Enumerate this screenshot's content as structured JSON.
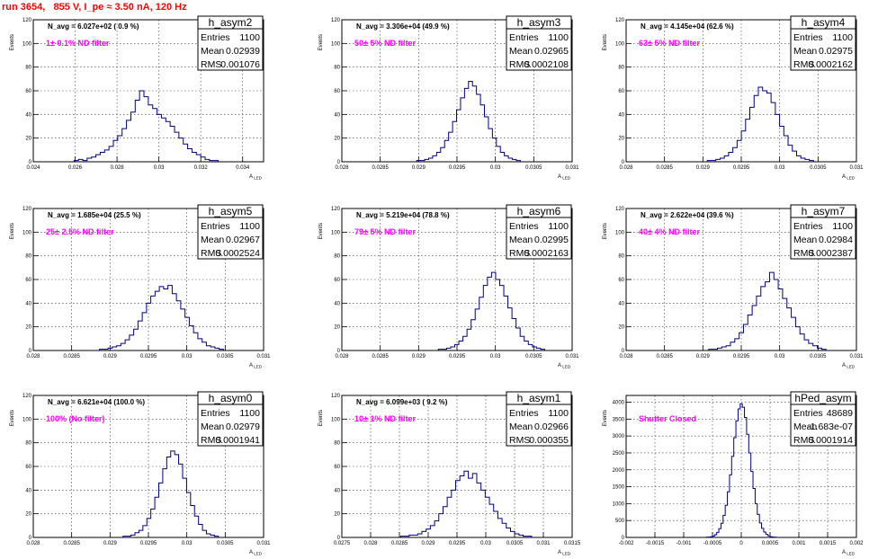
{
  "title": "run 3654,   855 V, I_pe ≈ 3.50 nA, 120 Hz",
  "chart_data": [
    {
      "type": "histogram",
      "name": "h_asym2",
      "n_avg": "N_avg = 6.027e+02 ( 0.9 %)",
      "filter": "1± 0.1% ND filter",
      "ylabel": "Events",
      "xlabel": "A_{LED}",
      "xlim": [
        0.024,
        0.035
      ],
      "ylim": [
        0,
        120
      ],
      "xticks": [
        0.024,
        0.026,
        0.028,
        0.03,
        0.032,
        0.034
      ],
      "xtick_labels": [
        "0.024",
        "0.026",
        "0.028",
        "0.03",
        "0.032",
        "0.034"
      ],
      "yticks": [
        0,
        20,
        40,
        60,
        80,
        100,
        120
      ],
      "stats": {
        "Entries": "1100",
        "Mean": "0.02939",
        "RMS": "0.001076"
      },
      "mean": 0.02939,
      "rms": 0.001076,
      "peak": 60,
      "values": [
        1,
        2,
        1,
        3,
        4,
        6,
        8,
        10,
        13,
        18,
        22,
        28,
        35,
        42,
        52,
        60,
        55,
        48,
        45,
        40,
        37,
        34,
        30,
        25,
        20,
        15,
        11,
        8,
        6,
        4,
        2,
        1,
        1
      ]
    },
    {
      "type": "histogram",
      "name": "h_asym3",
      "n_avg": "N_avg = 3.306e+04 (49.9 %)",
      "filter": "50± 5% ND filter",
      "ylabel": "Events",
      "xlabel": "A_{LED}",
      "xlim": [
        0.028,
        0.031
      ],
      "ylim": [
        0,
        120
      ],
      "xticks": [
        0.028,
        0.0285,
        0.029,
        0.0295,
        0.03,
        0.0305,
        0.031
      ],
      "xtick_labels": [
        "0.028",
        "0.0285",
        "0.029",
        "0.0295",
        "0.03",
        "0.0305",
        "0.031"
      ],
      "yticks": [
        0,
        20,
        40,
        60,
        80,
        100,
        120
      ],
      "stats": {
        "Entries": "1100",
        "Mean": "0.02965",
        "RMS": "0.0002108"
      },
      "mean": 0.02965,
      "rms": 0.0002108,
      "peak": 68,
      "values": [
        1,
        1,
        2,
        3,
        5,
        8,
        12,
        18,
        25,
        34,
        44,
        54,
        62,
        68,
        64,
        57,
        48,
        38,
        28,
        20,
        13,
        8,
        5,
        3,
        2,
        1
      ]
    },
    {
      "type": "histogram",
      "name": "h_asym4",
      "n_avg": "N_avg = 4.145e+04 (62.6 %)",
      "filter": "63± 5% ND filter",
      "ylabel": "Events",
      "xlabel": "A_{LED}",
      "xlim": [
        0.028,
        0.031
      ],
      "ylim": [
        0,
        120
      ],
      "xticks": [
        0.028,
        0.0285,
        0.029,
        0.0295,
        0.03,
        0.0305,
        0.031
      ],
      "xtick_labels": [
        "0.028",
        "0.0285",
        "0.029",
        "0.0295",
        "0.03",
        "0.0305",
        "0.031"
      ],
      "yticks": [
        0,
        20,
        40,
        60,
        80,
        100,
        120
      ],
      "stats": {
        "Entries": "1100",
        "Mean": "0.02975",
        "RMS": "0.0002162"
      },
      "mean": 0.02975,
      "rms": 0.0002162,
      "peak": 63,
      "values": [
        1,
        1,
        2,
        3,
        5,
        8,
        12,
        18,
        26,
        36,
        46,
        56,
        63,
        60,
        58,
        50,
        40,
        30,
        22,
        14,
        9,
        5,
        3,
        2,
        1
      ]
    },
    {
      "type": "histogram",
      "name": "h_asym5",
      "n_avg": "N_avg = 1.685e+04 (25.5 %)",
      "filter": "25± 2.5% ND filter",
      "ylabel": "Events",
      "xlabel": "A_{LED}",
      "xlim": [
        0.028,
        0.031
      ],
      "ylim": [
        0,
        120
      ],
      "xticks": [
        0.028,
        0.0285,
        0.029,
        0.0295,
        0.03,
        0.0305,
        0.031
      ],
      "xtick_labels": [
        "0.028",
        "0.0285",
        "0.029",
        "0.0295",
        "0.03",
        "0.0305",
        "0.031"
      ],
      "yticks": [
        0,
        20,
        40,
        60,
        80,
        100,
        120
      ],
      "stats": {
        "Entries": "1100",
        "Mean": "0.02967",
        "RMS": "0.0002524"
      },
      "mean": 0.02967,
      "rms": 0.0002524,
      "peak": 55,
      "values": [
        1,
        1,
        2,
        3,
        4,
        6,
        9,
        13,
        18,
        25,
        32,
        40,
        46,
        50,
        54,
        52,
        55,
        48,
        42,
        35,
        28,
        21,
        15,
        10,
        7,
        4,
        3,
        2,
        1
      ]
    },
    {
      "type": "histogram",
      "name": "h_asym6",
      "n_avg": "N_avg = 5.219e+04 (78.8 %)",
      "filter": "79± 5% ND filter",
      "ylabel": "Events",
      "xlabel": "A_{LED}",
      "xlim": [
        0.028,
        0.031
      ],
      "ylim": [
        0,
        120
      ],
      "xticks": [
        0.028,
        0.0285,
        0.029,
        0.0295,
        0.03,
        0.0305,
        0.031
      ],
      "xtick_labels": [
        "0.028",
        "0.0285",
        "0.029",
        "0.0295",
        "0.03",
        "0.0305",
        "0.031"
      ],
      "yticks": [
        0,
        20,
        40,
        60,
        80,
        100,
        120
      ],
      "stats": {
        "Entries": "1100",
        "Mean": "0.02995",
        "RMS": "0.0002163"
      },
      "mean": 0.02995,
      "rms": 0.0002163,
      "peak": 66,
      "values": [
        1,
        1,
        2,
        3,
        5,
        8,
        12,
        18,
        26,
        35,
        45,
        55,
        62,
        66,
        60,
        55,
        46,
        36,
        27,
        19,
        12,
        8,
        5,
        3,
        2,
        1
      ]
    },
    {
      "type": "histogram",
      "name": "h_asym7",
      "n_avg": "N_avg = 2.622e+04 (39.6 %)",
      "filter": "40± 4% ND filter",
      "ylabel": "Events",
      "xlabel": "A_{LED}",
      "xlim": [
        0.028,
        0.031
      ],
      "ylim": [
        0,
        120
      ],
      "xticks": [
        0.028,
        0.0285,
        0.029,
        0.0295,
        0.03,
        0.0305,
        0.031
      ],
      "xtick_labels": [
        "0.028",
        "0.0285",
        "0.029",
        "0.0295",
        "0.03",
        "0.0305",
        "0.031"
      ],
      "yticks": [
        0,
        20,
        40,
        60,
        80,
        100,
        120
      ],
      "stats": {
        "Entries": "1100",
        "Mean": "0.02984",
        "RMS": "0.0002387"
      },
      "mean": 0.02984,
      "rms": 0.0002387,
      "peak": 66,
      "values": [
        1,
        1,
        2,
        3,
        4,
        7,
        10,
        15,
        22,
        30,
        38,
        46,
        54,
        58,
        66,
        60,
        52,
        44,
        36,
        28,
        20,
        14,
        9,
        6,
        4,
        2,
        1
      ]
    },
    {
      "type": "histogram",
      "name": "h_asym0",
      "n_avg": "N_avg = 6.621e+04 (100.0 %)",
      "filter": "100% (No filter)",
      "ylabel": "Events",
      "xlabel": "A_{LED}",
      "xlim": [
        0.028,
        0.031
      ],
      "ylim": [
        0,
        120
      ],
      "xticks": [
        0.028,
        0.0285,
        0.029,
        0.0295,
        0.03,
        0.0305,
        0.031
      ],
      "xtick_labels": [
        "0.028",
        "0.0285",
        "0.029",
        "0.0295",
        "0.03",
        "0.0305",
        "0.031"
      ],
      "yticks": [
        0,
        20,
        40,
        60,
        80,
        100,
        120
      ],
      "stats": {
        "Entries": "1100",
        "Mean": "0.02979",
        "RMS": "0.0001941"
      },
      "mean": 0.02979,
      "rms": 0.0001941,
      "peak": 73,
      "values": [
        1,
        1,
        2,
        4,
        6,
        10,
        16,
        24,
        34,
        46,
        58,
        68,
        73,
        70,
        62,
        50,
        38,
        27,
        18,
        11,
        6,
        3,
        2,
        1
      ]
    },
    {
      "type": "histogram",
      "name": "h_asym1",
      "n_avg": "N_avg = 6.099e+03 ( 9.2 %)",
      "filter": "10± 1% ND filter",
      "ylabel": "Events",
      "xlabel": "A_{LED}",
      "xlim": [
        0.0275,
        0.0315
      ],
      "ylim": [
        0,
        120
      ],
      "xticks": [
        0.0275,
        0.028,
        0.0285,
        0.029,
        0.0295,
        0.03,
        0.0305,
        0.031,
        0.0315
      ],
      "xtick_labels": [
        "0.0275",
        "0.028",
        "0.0285",
        "0.029",
        "0.0295",
        "0.03",
        "0.0305",
        "0.031",
        "0.0315"
      ],
      "yticks": [
        0,
        20,
        40,
        60,
        80,
        100,
        120
      ],
      "stats": {
        "Entries": "1100",
        "Mean": "0.02966",
        "RMS": "0.000355"
      },
      "mean": 0.02966,
      "rms": 0.000355,
      "peak": 56,
      "values": [
        1,
        1,
        2,
        2,
        3,
        5,
        7,
        10,
        14,
        20,
        26,
        34,
        40,
        48,
        52,
        56,
        50,
        54,
        46,
        40,
        34,
        28,
        22,
        16,
        12,
        8,
        5,
        3,
        2,
        1,
        1
      ]
    },
    {
      "type": "histogram",
      "name": "hPed_asym",
      "n_avg": "",
      "filter": "Shutter Closed",
      "ylabel": "Events",
      "xlabel": "A_{LED}",
      "xlim": [
        -0.002,
        0.002
      ],
      "ylim": [
        0,
        4200
      ],
      "xticks": [
        -0.002,
        -0.0015,
        -0.001,
        -0.0005,
        0,
        0.0005,
        0.001,
        0.0015,
        0.002
      ],
      "xtick_labels": [
        "-0.002",
        "-0.0015",
        "-0.001",
        "-0.0005",
        "0",
        "0.0005",
        "0.001",
        "0.0015",
        "0.002"
      ],
      "yticks": [
        0,
        500,
        1000,
        1500,
        2000,
        2500,
        3000,
        3500,
        4000
      ],
      "stats": {
        "Entries": "48689",
        "Mean": "-1.683e-07",
        "RMS": "0.0001914"
      },
      "mean": -1.68e-07,
      "rms": 0.0001914,
      "peak": 3950,
      "values": [
        5,
        10,
        20,
        40,
        80,
        150,
        260,
        420,
        650,
        950,
        1350,
        1850,
        2400,
        2950,
        3450,
        3800,
        3950,
        3850,
        3550,
        3050,
        2500,
        1950,
        1450,
        1000,
        680,
        430,
        270,
        160,
        90,
        45,
        20,
        10,
        5
      ]
    }
  ]
}
